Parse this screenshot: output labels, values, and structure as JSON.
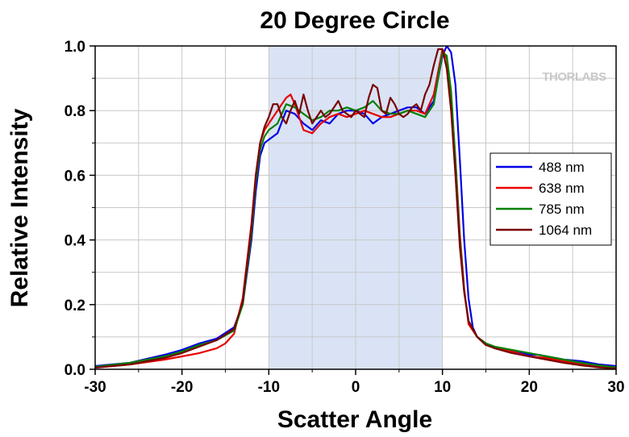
{
  "chart_data": {
    "type": "line",
    "title": "20 Degree Circle",
    "xlabel": "Scatter Angle",
    "ylabel": "Relative Intensity",
    "xlim": [
      -30,
      30
    ],
    "ylim": [
      0,
      1.0
    ],
    "xticks": [
      -30,
      -20,
      -10,
      0,
      10,
      20,
      30
    ],
    "xtick_labels": [
      "-30",
      "-20",
      "-10",
      "0",
      "10",
      "20",
      "30"
    ],
    "yticks": [
      0,
      0.2,
      0.4,
      0.6,
      0.8,
      1.0
    ],
    "ytick_labels": [
      "0.0",
      "0.2",
      "0.4",
      "0.6",
      "0.8",
      "1.0"
    ],
    "grid": true,
    "legend_position": "right",
    "highlight_region": {
      "x_start": -10,
      "x_end": 10,
      "color": "#d9e3f5"
    },
    "watermark": "THORLABS",
    "series": [
      {
        "name": "488 nm",
        "color": "#0000e6",
        "x": [
          -30,
          -26,
          -22,
          -20,
          -18,
          -16,
          -14,
          -13,
          -12,
          -11.5,
          -11,
          -10.5,
          -10,
          -9,
          -8,
          -7,
          -6,
          -5,
          -4,
          -3,
          -2,
          -1,
          0,
          1,
          2,
          3,
          4,
          5,
          6,
          7,
          8,
          9,
          9.5,
          10,
          10.5,
          11,
          11.5,
          12,
          12.5,
          13,
          13.5,
          14,
          15,
          16,
          18,
          20,
          21,
          22,
          24,
          26,
          28,
          30
        ],
        "y": [
          0.01,
          0.02,
          0.045,
          0.06,
          0.08,
          0.095,
          0.13,
          0.2,
          0.4,
          0.55,
          0.66,
          0.7,
          0.71,
          0.73,
          0.8,
          0.79,
          0.76,
          0.74,
          0.77,
          0.76,
          0.79,
          0.8,
          0.8,
          0.79,
          0.76,
          0.78,
          0.79,
          0.8,
          0.81,
          0.81,
          0.79,
          0.83,
          0.9,
          0.97,
          1.0,
          0.98,
          0.88,
          0.65,
          0.4,
          0.22,
          0.13,
          0.1,
          0.08,
          0.065,
          0.055,
          0.045,
          0.045,
          0.04,
          0.03,
          0.025,
          0.015,
          0.01
        ]
      },
      {
        "name": "638 nm",
        "color": "#e60000",
        "x": [
          -30,
          -26,
          -22,
          -20,
          -18,
          -16,
          -15,
          -14,
          -13,
          -12,
          -11.5,
          -11,
          -10.5,
          -10,
          -9,
          -8,
          -7.5,
          -7,
          -6,
          -5,
          -4,
          -3,
          -2,
          -1,
          0,
          1,
          2,
          3,
          4,
          5,
          6,
          7,
          8,
          9,
          9.5,
          10,
          10.5,
          11,
          11.5,
          12,
          12.5,
          13,
          14,
          15,
          16,
          18,
          20,
          22,
          24,
          26,
          28,
          30
        ],
        "y": [
          0.005,
          0.015,
          0.03,
          0.04,
          0.05,
          0.065,
          0.08,
          0.11,
          0.22,
          0.45,
          0.6,
          0.7,
          0.74,
          0.76,
          0.8,
          0.84,
          0.85,
          0.82,
          0.74,
          0.73,
          0.76,
          0.78,
          0.79,
          0.78,
          0.79,
          0.8,
          0.79,
          0.78,
          0.78,
          0.79,
          0.8,
          0.8,
          0.79,
          0.85,
          0.92,
          0.99,
          0.96,
          0.85,
          0.65,
          0.42,
          0.25,
          0.14,
          0.1,
          0.08,
          0.07,
          0.055,
          0.04,
          0.035,
          0.025,
          0.015,
          0.01,
          0.005
        ]
      },
      {
        "name": "785 nm",
        "color": "#008000",
        "x": [
          -30,
          -26,
          -22,
          -20,
          -18,
          -16,
          -14,
          -13,
          -12,
          -11.5,
          -11,
          -10.5,
          -10,
          -9,
          -8,
          -7,
          -6,
          -5,
          -4,
          -3,
          -2,
          -1,
          0,
          1,
          2,
          3,
          4,
          5,
          6,
          7,
          8,
          9,
          9.5,
          10,
          10.5,
          11,
          11.5,
          12,
          12.5,
          13,
          14,
          15,
          16,
          18,
          20,
          22,
          24,
          26,
          28,
          30
        ],
        "y": [
          0.008,
          0.02,
          0.04,
          0.055,
          0.075,
          0.09,
          0.12,
          0.2,
          0.42,
          0.58,
          0.68,
          0.72,
          0.74,
          0.76,
          0.82,
          0.81,
          0.79,
          0.77,
          0.78,
          0.8,
          0.8,
          0.81,
          0.8,
          0.81,
          0.83,
          0.8,
          0.79,
          0.79,
          0.8,
          0.79,
          0.78,
          0.82,
          0.9,
          0.98,
          0.97,
          0.86,
          0.64,
          0.4,
          0.24,
          0.15,
          0.1,
          0.08,
          0.07,
          0.06,
          0.05,
          0.04,
          0.03,
          0.02,
          0.012,
          0.006
        ]
      },
      {
        "name": "1064 nm",
        "color": "#7a0000",
        "x": [
          -30,
          -26,
          -22,
          -20,
          -18,
          -16,
          -14,
          -13,
          -12,
          -11.5,
          -11,
          -10.5,
          -10,
          -9.5,
          -9,
          -8.5,
          -8,
          -7.5,
          -7,
          -6.5,
          -6,
          -5.5,
          -5,
          -4.5,
          -4,
          -3.5,
          -3,
          -2.5,
          -2,
          -1.5,
          -1,
          -0.5,
          0,
          0.5,
          1,
          1.5,
          2,
          2.5,
          3,
          3.5,
          4,
          4.5,
          5,
          5.5,
          6,
          6.5,
          7,
          7.5,
          8,
          8.5,
          9,
          9.5,
          10,
          10.5,
          11,
          11.5,
          12,
          12.5,
          13,
          14,
          15,
          16,
          18,
          20,
          22,
          24,
          26,
          28,
          30
        ],
        "y": [
          0.005,
          0.015,
          0.035,
          0.05,
          0.07,
          0.09,
          0.125,
          0.21,
          0.44,
          0.6,
          0.7,
          0.75,
          0.78,
          0.82,
          0.82,
          0.78,
          0.76,
          0.8,
          0.83,
          0.79,
          0.85,
          0.8,
          0.76,
          0.78,
          0.8,
          0.78,
          0.79,
          0.81,
          0.83,
          0.8,
          0.79,
          0.78,
          0.8,
          0.79,
          0.78,
          0.84,
          0.88,
          0.87,
          0.8,
          0.79,
          0.84,
          0.82,
          0.79,
          0.78,
          0.79,
          0.81,
          0.82,
          0.8,
          0.85,
          0.88,
          0.94,
          0.99,
          0.99,
          0.93,
          0.8,
          0.6,
          0.38,
          0.24,
          0.15,
          0.1,
          0.075,
          0.065,
          0.05,
          0.04,
          0.03,
          0.02,
          0.012,
          0.006,
          0.002
        ]
      }
    ]
  }
}
